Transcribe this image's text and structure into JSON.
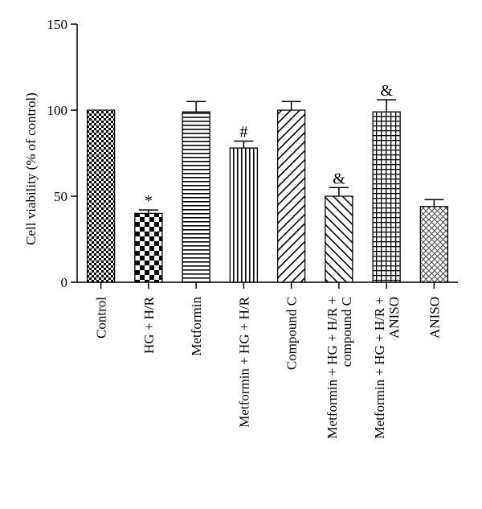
{
  "chart_data": {
    "type": "bar",
    "ylabel": "Cell viability (% of control)",
    "xlabel": "",
    "ylim": [
      0,
      150
    ],
    "yticks": [
      0,
      50,
      100,
      150
    ],
    "grid": false,
    "categories": [
      [
        "Control"
      ],
      [
        "HG + H/R"
      ],
      [
        "Metformin"
      ],
      [
        "Metformin + HG + H/R"
      ],
      [
        "Compound C"
      ],
      [
        "Metformin + HG + H/R +",
        "compound C"
      ],
      [
        "Metformin + HG + H/R +",
        "ANISO"
      ],
      [
        "ANISO"
      ]
    ],
    "values": [
      100,
      40,
      99,
      78,
      100,
      50,
      99,
      44
    ],
    "errors": [
      0,
      2,
      6,
      4,
      5,
      5,
      7,
      4
    ],
    "significance": [
      "",
      "*",
      "",
      "#",
      "",
      "&",
      "&",
      ""
    ],
    "patterns": [
      "checker-small",
      "checker-large",
      "horizontal",
      "vertical",
      "diagonal-right",
      "diagonal-left",
      "grid",
      "crosshatch-fine"
    ]
  }
}
